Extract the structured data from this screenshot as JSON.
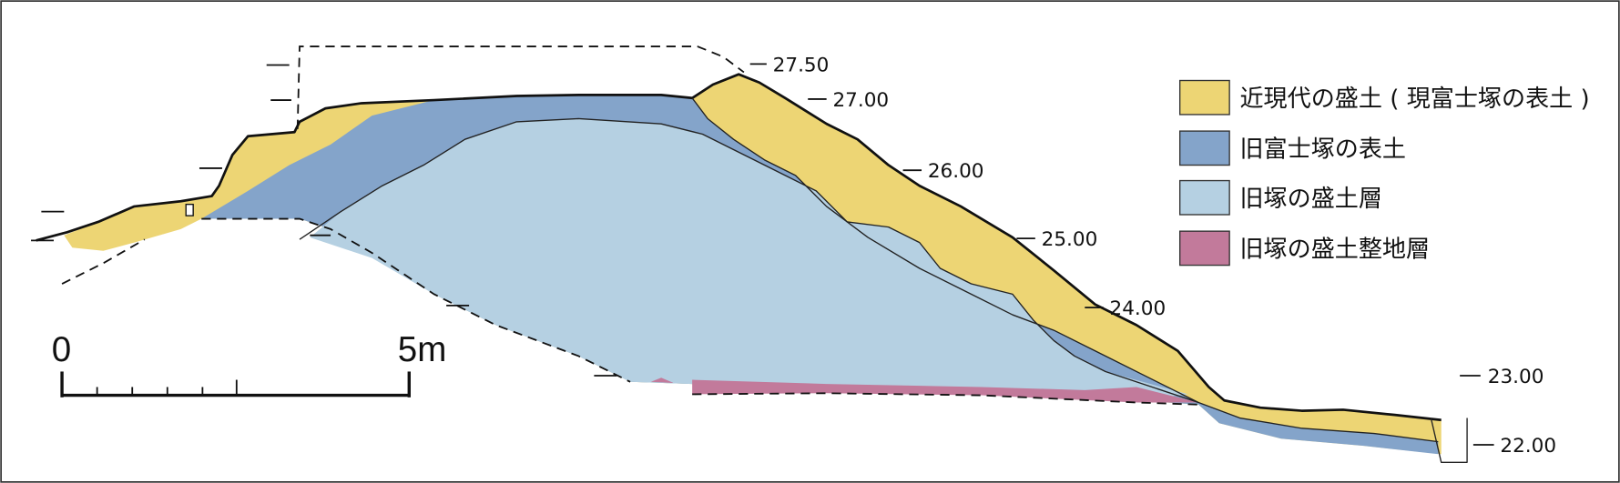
{
  "colors": {
    "modern_fill": "#EDD574",
    "old_topsoil": "#84A4CA",
    "old_mound_fill": "#B5D0E2",
    "old_leveling": "#C27A9B"
  },
  "legend": [
    {
      "label": "近現代の盛土 ( 現富士塚の表土 )",
      "color": "#EDD574"
    },
    {
      "label": "旧富士塚の表土",
      "color": "#84A4CA"
    },
    {
      "label": "旧塚の盛土層",
      "color": "#B5D0E2"
    },
    {
      "label": "旧塚の盛土整地層",
      "color": "#C27A9B"
    }
  ],
  "elevations": [
    "27.50",
    "27.00",
    "26.00",
    "25.00",
    "24.00",
    "23.00",
    "22.00"
  ],
  "scale_bar": {
    "start": "0",
    "end": "5m"
  }
}
